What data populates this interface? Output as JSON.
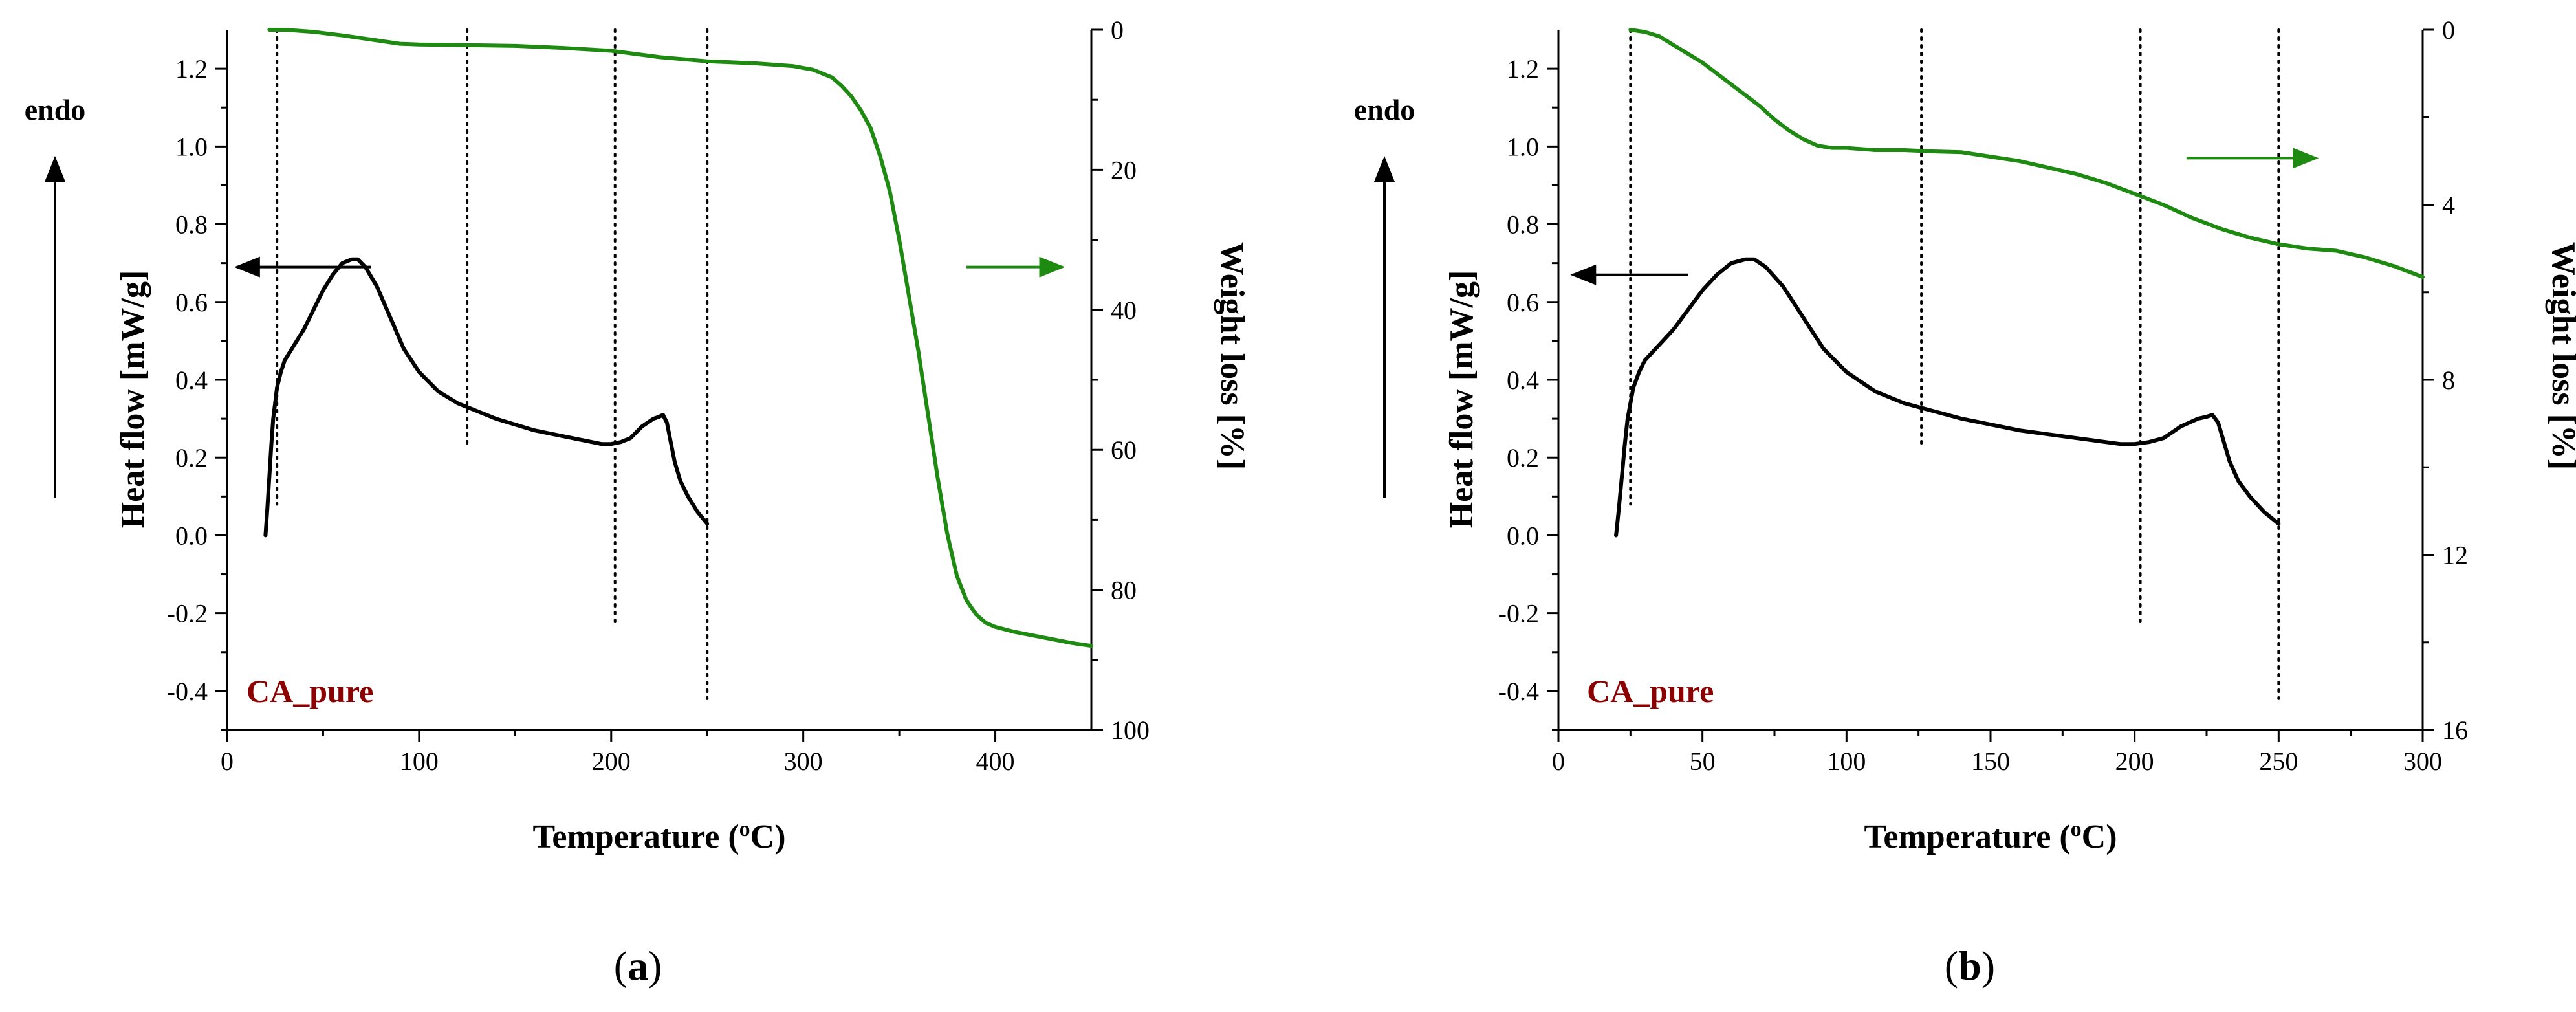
{
  "colors": {
    "heat_flow": "#000000",
    "weight_loss": "#1f8a11",
    "sample_label": "#8b0000"
  },
  "chart_data": [
    {
      "panel": "(a)",
      "panel_letter": "a",
      "type": "line",
      "xlabel": "Temperature (°C)",
      "xlabel_main": "Temperature (",
      "xlabel_sup": "o",
      "xlabel_end": "C)",
      "ylabel_left": "Heat flow [mW/g]",
      "ylabel_right": "Weight loss [%]",
      "endo_label": "endo",
      "sample_label": "CA_pure",
      "xlim": [
        0,
        450
      ],
      "ylim_left": [
        -0.5,
        1.3
      ],
      "ylim_right": [
        0,
        100
      ],
      "right_axis_inverted": true,
      "x_ticks": [
        "0",
        "100",
        "200",
        "300",
        "400"
      ],
      "y_left_ticks": [
        "-0.4",
        "-0.2",
        "0.0",
        "0.2",
        "0.4",
        "0.6",
        "0.8",
        "1.0",
        "1.2"
      ],
      "y_right_ticks": [
        "0",
        "20",
        "40",
        "60",
        "80",
        "100"
      ],
      "vlines": [
        {
          "x": 26,
          "from": 0.08,
          "to": 1.3
        },
        {
          "x": 125,
          "from": 0.23,
          "to": 1.3
        },
        {
          "x": 202,
          "from": -0.23,
          "to": 1.3
        },
        {
          "x": 250,
          "from": -0.42,
          "to": 1.3
        }
      ],
      "arrows": [
        {
          "series": "heat_flow",
          "direction": "left",
          "x_from": 75,
          "x_to": 5,
          "y": 0.69
        },
        {
          "series": "weight_loss",
          "direction": "right",
          "x_from": 385,
          "x_to": 435,
          "y": 0.69
        }
      ],
      "series": [
        {
          "name": "Heat flow",
          "axis": "left",
          "x": [
            20,
            21,
            22,
            23,
            24,
            26,
            28,
            30,
            35,
            40,
            45,
            50,
            55,
            60,
            65,
            68,
            72,
            78,
            85,
            92,
            100,
            110,
            120,
            130,
            140,
            150,
            160,
            170,
            180,
            190,
            195,
            200,
            205,
            210,
            213,
            216,
            219,
            222,
            225,
            227,
            229,
            231,
            233,
            236,
            240,
            245,
            250
          ],
          "values": [
            0.0,
            0.07,
            0.15,
            0.23,
            0.3,
            0.38,
            0.42,
            0.45,
            0.49,
            0.53,
            0.58,
            0.63,
            0.67,
            0.7,
            0.71,
            0.71,
            0.69,
            0.64,
            0.56,
            0.48,
            0.42,
            0.37,
            0.34,
            0.32,
            0.3,
            0.285,
            0.27,
            0.26,
            0.25,
            0.24,
            0.235,
            0.235,
            0.24,
            0.25,
            0.265,
            0.28,
            0.29,
            0.3,
            0.305,
            0.31,
            0.29,
            0.24,
            0.19,
            0.14,
            0.1,
            0.06,
            0.03
          ]
        },
        {
          "name": "Weight loss",
          "axis": "right",
          "x": [
            22,
            30,
            45,
            60,
            75,
            90,
            100,
            125,
            150,
            175,
            200,
            225,
            250,
            275,
            295,
            305,
            315,
            320,
            325,
            330,
            335,
            340,
            345,
            350,
            355,
            360,
            365,
            370,
            375,
            380,
            385,
            390,
            395,
            400,
            410,
            425,
            440,
            450
          ],
          "values": [
            0,
            0,
            0.3,
            0.8,
            1.4,
            2.0,
            2.1,
            2.2,
            2.3,
            2.6,
            3.0,
            3.9,
            4.5,
            4.8,
            5.2,
            5.7,
            6.8,
            8.0,
            9.5,
            11.5,
            14,
            18,
            23,
            30,
            38,
            46,
            55,
            64,
            72,
            78,
            81.5,
            83.5,
            84.7,
            85.3,
            86,
            86.8,
            87.6,
            88
          ]
        }
      ]
    },
    {
      "panel": "(b)",
      "panel_letter": "b",
      "type": "line",
      "xlabel": "Temperature (°C)",
      "xlabel_main": "Temperature (",
      "xlabel_sup": "o",
      "xlabel_end": "C)",
      "ylabel_left": "Heat flow [mW/g]",
      "ylabel_right": "Weight loss [%]",
      "endo_label": "endo",
      "sample_label": "CA_pure",
      "xlim": [
        0,
        300
      ],
      "ylim_left": [
        -0.5,
        1.3
      ],
      "ylim_right": [
        0,
        16
      ],
      "right_axis_inverted": true,
      "x_ticks": [
        "0",
        "50",
        "100",
        "150",
        "200",
        "250",
        "300"
      ],
      "y_left_ticks": [
        "-0.4",
        "-0.2",
        "0.0",
        "0.2",
        "0.4",
        "0.6",
        "0.8",
        "1.0",
        "1.2"
      ],
      "y_right_ticks": [
        "0",
        "4",
        "8",
        "12",
        "16"
      ],
      "vlines": [
        {
          "x": 25,
          "from": 0.08,
          "to": 1.3
        },
        {
          "x": 126,
          "from": 0.23,
          "to": 1.3
        },
        {
          "x": 202,
          "from": -0.23,
          "to": 1.3
        },
        {
          "x": 250,
          "from": -0.42,
          "to": 1.3
        }
      ],
      "arrows": [
        {
          "series": "heat_flow",
          "direction": "left",
          "x_from": 45,
          "x_to": 5,
          "y": 0.67
        },
        {
          "series": "weight_loss",
          "direction": "right",
          "x_from": 218,
          "x_to": 263,
          "y": 0.97
        }
      ],
      "series": [
        {
          "name": "Heat flow",
          "axis": "left",
          "x": [
            20,
            21,
            22,
            23,
            24,
            26,
            28,
            30,
            35,
            40,
            45,
            50,
            55,
            60,
            65,
            68,
            72,
            78,
            85,
            92,
            100,
            110,
            120,
            130,
            140,
            150,
            160,
            170,
            180,
            190,
            195,
            200,
            205,
            210,
            213,
            216,
            219,
            222,
            225,
            227,
            229,
            231,
            233,
            236,
            240,
            245,
            250
          ],
          "values": [
            0.0,
            0.07,
            0.15,
            0.23,
            0.3,
            0.38,
            0.42,
            0.45,
            0.49,
            0.53,
            0.58,
            0.63,
            0.67,
            0.7,
            0.71,
            0.71,
            0.69,
            0.64,
            0.56,
            0.48,
            0.42,
            0.37,
            0.34,
            0.32,
            0.3,
            0.285,
            0.27,
            0.26,
            0.25,
            0.24,
            0.235,
            0.235,
            0.24,
            0.25,
            0.265,
            0.28,
            0.29,
            0.3,
            0.305,
            0.31,
            0.29,
            0.24,
            0.19,
            0.14,
            0.1,
            0.06,
            0.03
          ]
        },
        {
          "name": "Weight loss",
          "axis": "right",
          "x": [
            25,
            30,
            35,
            40,
            45,
            50,
            55,
            60,
            65,
            70,
            75,
            80,
            85,
            90,
            95,
            100,
            110,
            120,
            130,
            140,
            150,
            160,
            170,
            180,
            190,
            200,
            210,
            220,
            230,
            240,
            250,
            260,
            270,
            280,
            290,
            300
          ],
          "values": [
            0,
            0.05,
            0.15,
            0.35,
            0.55,
            0.75,
            1.0,
            1.25,
            1.5,
            1.75,
            2.05,
            2.3,
            2.5,
            2.65,
            2.7,
            2.7,
            2.75,
            2.75,
            2.78,
            2.8,
            2.9,
            3.0,
            3.15,
            3.3,
            3.5,
            3.75,
            4.0,
            4.3,
            4.55,
            4.75,
            4.9,
            5.0,
            5.05,
            5.2,
            5.4,
            5.65
          ]
        }
      ]
    }
  ]
}
